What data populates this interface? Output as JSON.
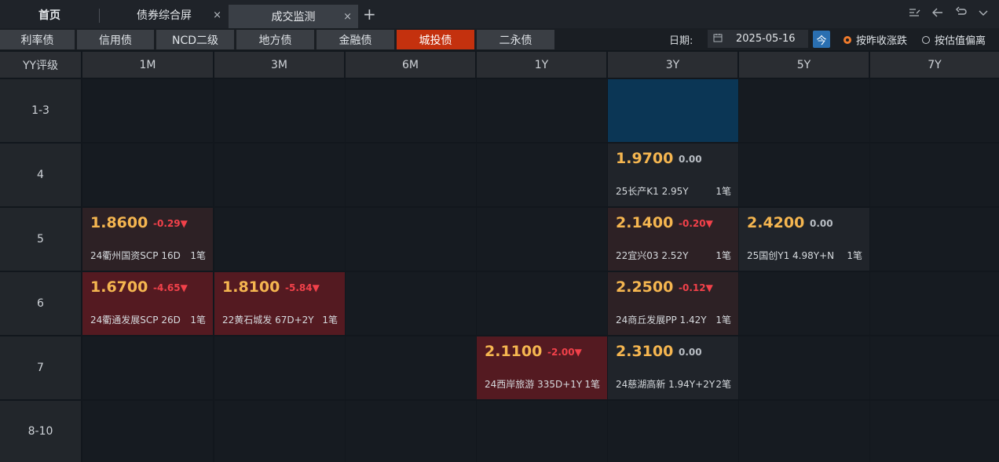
{
  "tabs": {
    "home": "首页",
    "bonds_screen": "债券综合屏",
    "trade_monitor": "成交监测",
    "close_glyph": "×",
    "add_glyph": "+"
  },
  "categories": [
    {
      "label": "利率债",
      "active": false
    },
    {
      "label": "信用债",
      "active": false
    },
    {
      "label": "NCD二级",
      "active": false
    },
    {
      "label": "地方债",
      "active": false
    },
    {
      "label": "金融债",
      "active": false
    },
    {
      "label": "城投债",
      "active": true
    },
    {
      "label": "二永债",
      "active": false
    }
  ],
  "date": {
    "label": "日期:",
    "value": "2025-05-16",
    "today": "今"
  },
  "radios": [
    {
      "label": "按昨收涨跌",
      "selected": true
    },
    {
      "label": "按估值偏离",
      "selected": false
    }
  ],
  "grid": {
    "corner": "YY评级",
    "columns": [
      "1M",
      "3M",
      "6M",
      "1Y",
      "3Y",
      "5Y",
      "7Y"
    ],
    "rows": [
      "1-3",
      "4",
      "5",
      "6",
      "7",
      "8-10"
    ]
  },
  "cells": [
    {
      "row": 0,
      "col": 4,
      "style": "blue"
    },
    {
      "row": 1,
      "col": 4,
      "style": "neutral",
      "price": "1.9700",
      "change": "0.00",
      "direction": "zero",
      "bond": "25长产K1 2.95Y",
      "count": "1笔"
    },
    {
      "row": 2,
      "col": 0,
      "style": "dkred",
      "price": "1.8600",
      "change": "-0.29▼",
      "direction": "neg",
      "bond": "24衢州国资SCP 16D",
      "count": "1笔"
    },
    {
      "row": 2,
      "col": 4,
      "style": "dkred",
      "price": "2.1400",
      "change": "-0.20▼",
      "direction": "neg",
      "bond": "22宜兴03 2.52Y",
      "count": "1笔"
    },
    {
      "row": 2,
      "col": 5,
      "style": "neutral",
      "price": "2.4200",
      "change": "0.00",
      "direction": "zero",
      "bond": "25国创Y1 4.98Y+N",
      "count": "1笔"
    },
    {
      "row": 3,
      "col": 0,
      "style": "red",
      "price": "1.6700",
      "change": "-4.65▼",
      "direction": "neg",
      "bond": "24衢通发展SCP 26D",
      "count": "1笔"
    },
    {
      "row": 3,
      "col": 1,
      "style": "red",
      "price": "1.8100",
      "change": "-5.84▼",
      "direction": "neg",
      "bond": "22黄石城发 67D+2Y",
      "count": "1笔"
    },
    {
      "row": 3,
      "col": 4,
      "style": "dkred",
      "price": "2.2500",
      "change": "-0.12▼",
      "direction": "neg",
      "bond": "24商丘发展PP 1.42Y",
      "count": "1笔"
    },
    {
      "row": 4,
      "col": 3,
      "style": "red",
      "price": "2.1100",
      "change": "-2.00▼",
      "direction": "neg",
      "bond": "24西岸旅游 335D+1Y",
      "count": "1笔"
    },
    {
      "row": 4,
      "col": 4,
      "style": "neutral",
      "price": "2.3100",
      "change": "0.00",
      "direction": "zero",
      "bond": "24慈湖高新 1.94Y+2Y",
      "count": "2笔"
    }
  ]
}
